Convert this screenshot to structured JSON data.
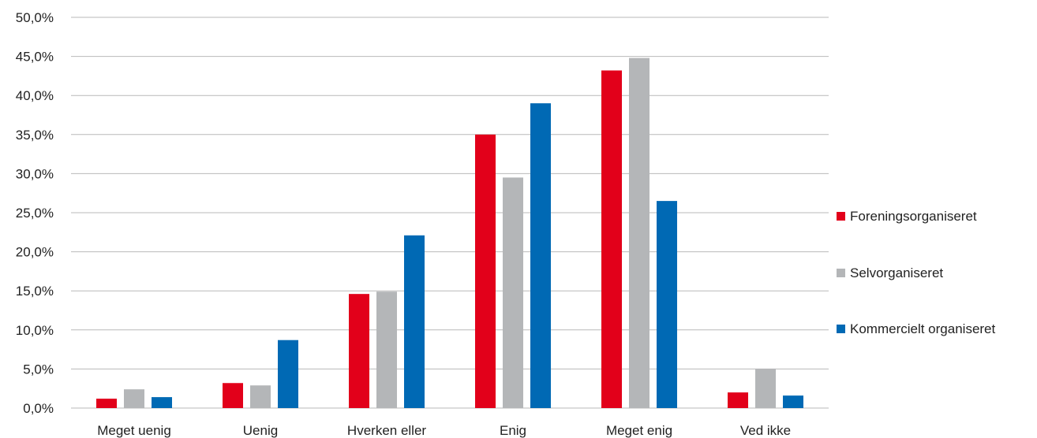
{
  "chart_data": {
    "type": "bar",
    "categories": [
      "Meget uenig",
      "Uenig",
      "Hverken eller",
      "Enig",
      "Meget enig",
      "Ved ikke"
    ],
    "series": [
      {
        "name": "Foreningsorganiseret",
        "color": "#e2001a",
        "values": [
          1.2,
          3.2,
          14.6,
          35.0,
          43.2,
          2.0
        ]
      },
      {
        "name": "Selvorganiseret",
        "color": "#b4b6b8",
        "values": [
          2.4,
          2.9,
          14.9,
          29.5,
          44.8,
          5.0
        ]
      },
      {
        "name": "Kommercielt organiseret",
        "color": "#0069b4",
        "values": [
          1.4,
          8.7,
          22.1,
          39.0,
          26.5,
          1.6
        ]
      }
    ],
    "y_ticks": [
      "0,0%",
      "5,0%",
      "10,0%",
      "15,0%",
      "20,0%",
      "25,0%",
      "30,0%",
      "35,0%",
      "40,0%",
      "45,0%",
      "50,0%"
    ],
    "ylim": [
      0,
      50
    ],
    "title": "",
    "xlabel": "",
    "ylabel": "",
    "grid": true,
    "legend_position": "right"
  }
}
